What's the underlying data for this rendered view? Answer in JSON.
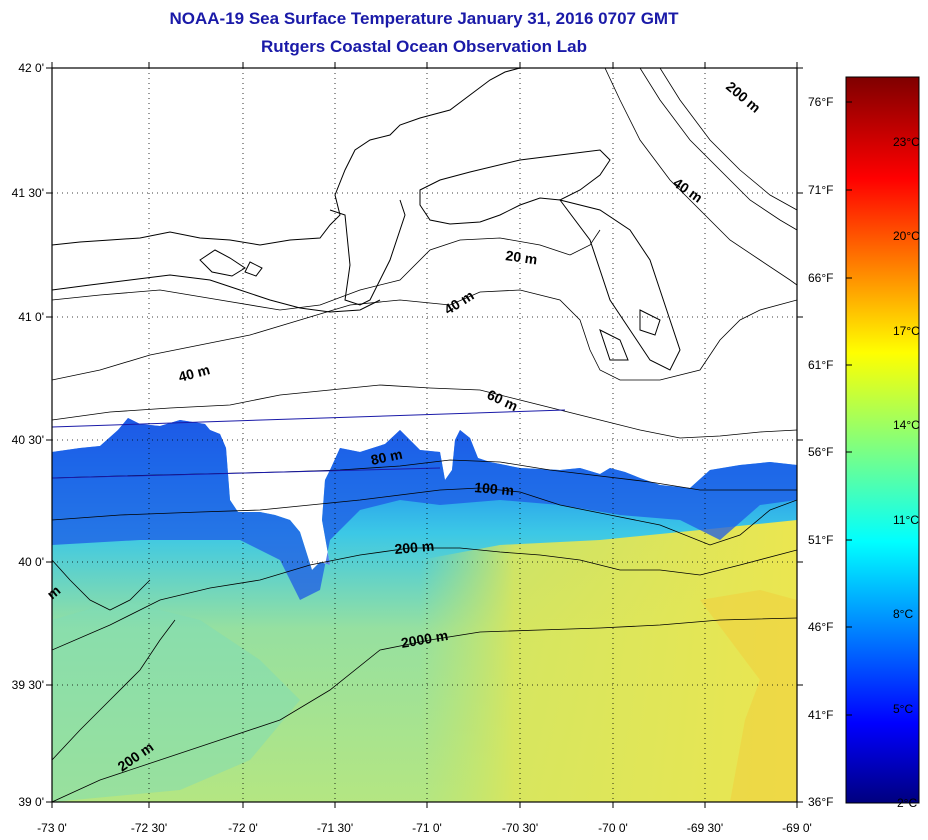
{
  "title": "NOAA-19 Sea Surface Temperature January 31, 2016 0707 GMT",
  "subtitle": "Rutgers Coastal Ocean Observation Lab",
  "title_color": "#1a1aa8",
  "axes": {
    "lon_ticks": [
      "-73 0'",
      "-72 30'",
      "-72 0'",
      "-71 30'",
      "-71 0'",
      "-70 30'",
      "-70 0'",
      "-69 30'",
      "-69 0'"
    ],
    "lat_ticks": [
      "42 0'",
      "41 30'",
      "41 0'",
      "40 30'",
      "40 0'",
      "39 30'",
      "39 0'"
    ],
    "lon_range": [
      -73,
      -69
    ],
    "lat_range": [
      39,
      42
    ]
  },
  "contour_labels": [
    "20 m",
    "40 m",
    "40 m",
    "40 m",
    "60 m",
    "80 m",
    "100 m",
    "200 m",
    "2000 m",
    "200 m",
    "200 m",
    "m"
  ],
  "colorbar": {
    "fahrenheit": [
      "76°F",
      "71°F",
      "66°F",
      "61°F",
      "56°F",
      "51°F",
      "46°F",
      "41°F",
      "36°F"
    ],
    "celsius": [
      "23°C",
      "20°C",
      "17°C",
      "14°C",
      "11°C",
      "8°C",
      "5°C",
      "2°C"
    ],
    "colors": [
      "#00007f",
      "#0000ff",
      "#007fff",
      "#00ffff",
      "#7fff7f",
      "#ffff00",
      "#ff7f00",
      "#ff0000",
      "#7f0000"
    ]
  },
  "sst_colors": {
    "cold": "#1e5ae6",
    "mid": "#3cc8e6",
    "warm": "#b4e682",
    "hot": "#ebe650"
  }
}
